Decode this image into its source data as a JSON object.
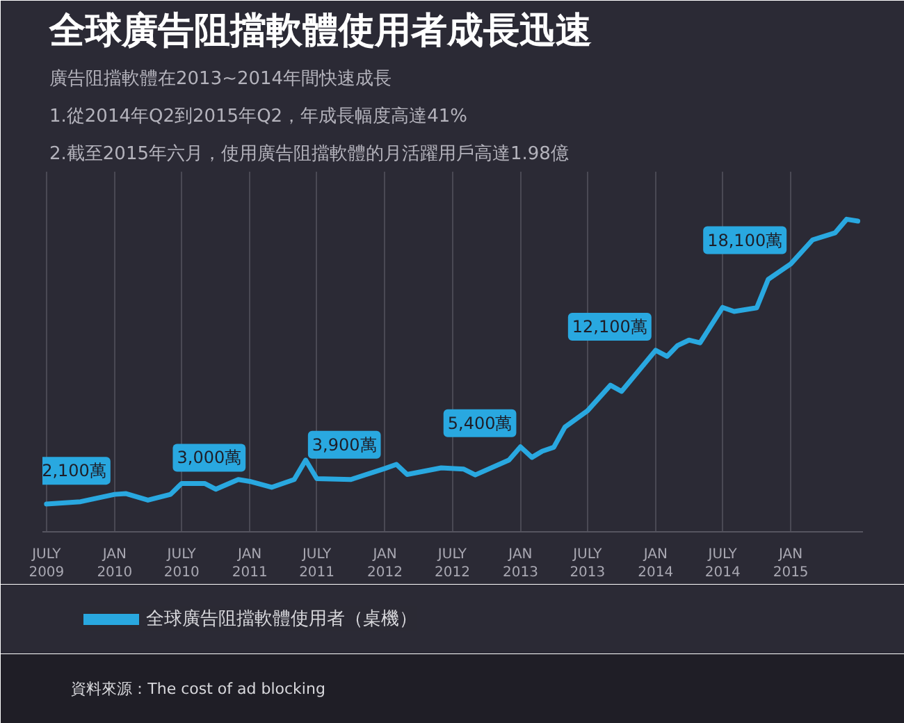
{
  "chart_data": {
    "type": "line",
    "title": "全球廣告阻擋軟體使用者成長迅速",
    "subtitle": "廣告阻擋軟體在2013~2014年間快速成長",
    "annotations": [
      "1.從2014年Q2到2015年Q2，年成長幅度高達41%",
      "2.截至2015年六月，使用廣告阻擋軟體的月活躍用戶高達1.98億",
      "資料來源：The cost of ad blocking"
    ],
    "x": [
      "2009-07",
      "2009-10",
      "2010-01",
      "2010-02",
      "2010-04",
      "2010-06",
      "2010-07",
      "2010-09",
      "2010-10",
      "2010-12",
      "2011-01",
      "2011-03",
      "2011-05",
      "2011-06",
      "2011-07",
      "2011-10",
      "2012-01",
      "2012-02",
      "2012-03",
      "2012-06",
      "2012-08",
      "2012-09",
      "2012-12",
      "2013-01",
      "2013-02",
      "2013-03",
      "2013-04",
      "2013-05",
      "2013-07",
      "2013-09",
      "2013-10",
      "2014-01",
      "2014-02",
      "2014-03",
      "2014-04",
      "2014-05",
      "2014-07",
      "2014-08",
      "2014-10",
      "2014-11",
      "2015-01",
      "2015-03",
      "2015-05",
      "2015-06",
      "2015-07"
    ],
    "series": [
      {
        "name": "全球廣告阻擋軟體使用者（桌機）",
        "color": "#29a8e0",
        "values": [
          1430,
          1590,
          2100,
          2150,
          1700,
          2100,
          2860,
          2860,
          2460,
          3130,
          3000,
          2590,
          3130,
          4480,
          3190,
          3130,
          3900,
          4180,
          3480,
          3940,
          3850,
          3450,
          4480,
          5400,
          4670,
          5100,
          5370,
          6770,
          7900,
          9680,
          9250,
          12100,
          11680,
          12430,
          12810,
          12620,
          15080,
          14800,
          15050,
          17020,
          18100,
          19770,
          20260,
          21200,
          21070
        ],
        "value_labels": [
          null,
          null,
          "2,100萬",
          null,
          null,
          null,
          null,
          null,
          null,
          null,
          "3,000萬",
          null,
          null,
          null,
          null,
          null,
          "3,900萬",
          null,
          null,
          null,
          null,
          null,
          null,
          "5,400萬",
          null,
          null,
          null,
          null,
          null,
          null,
          null,
          "12,100萬",
          null,
          null,
          null,
          null,
          null,
          null,
          null,
          null,
          "18,100萬",
          null,
          null,
          null,
          null
        ]
      }
    ],
    "xlim": [
      "2009-06-20",
      "2015-07-15"
    ],
    "xticks": [
      {
        "value": "2009-07",
        "label": "JULY\n2009"
      },
      {
        "value": "2010-01",
        "label": "JAN\n2010"
      },
      {
        "value": "2010-07",
        "label": "JULY\n2010"
      },
      {
        "value": "2011-01",
        "label": "JAN\n2011"
      },
      {
        "value": "2011-07",
        "label": "JULY\n2011"
      },
      {
        "value": "2012-01",
        "label": "JAN\n2012"
      },
      {
        "value": "2012-07",
        "label": "JULY\n2012"
      },
      {
        "value": "2013-01",
        "label": "JAN\n2013"
      },
      {
        "value": "2013-07",
        "label": "JULY\n2013"
      },
      {
        "value": "2014-01",
        "label": "JAN\n2014"
      },
      {
        "value": "2014-07",
        "label": "JULY\n2014"
      },
      {
        "value": "2015-01",
        "label": "JAN\n2015"
      }
    ],
    "ylim": [
      -500,
      24500
    ],
    "tick_labels": "x",
    "grid": "x",
    "legend": "bottom",
    "line_style": "solid"
  }
}
